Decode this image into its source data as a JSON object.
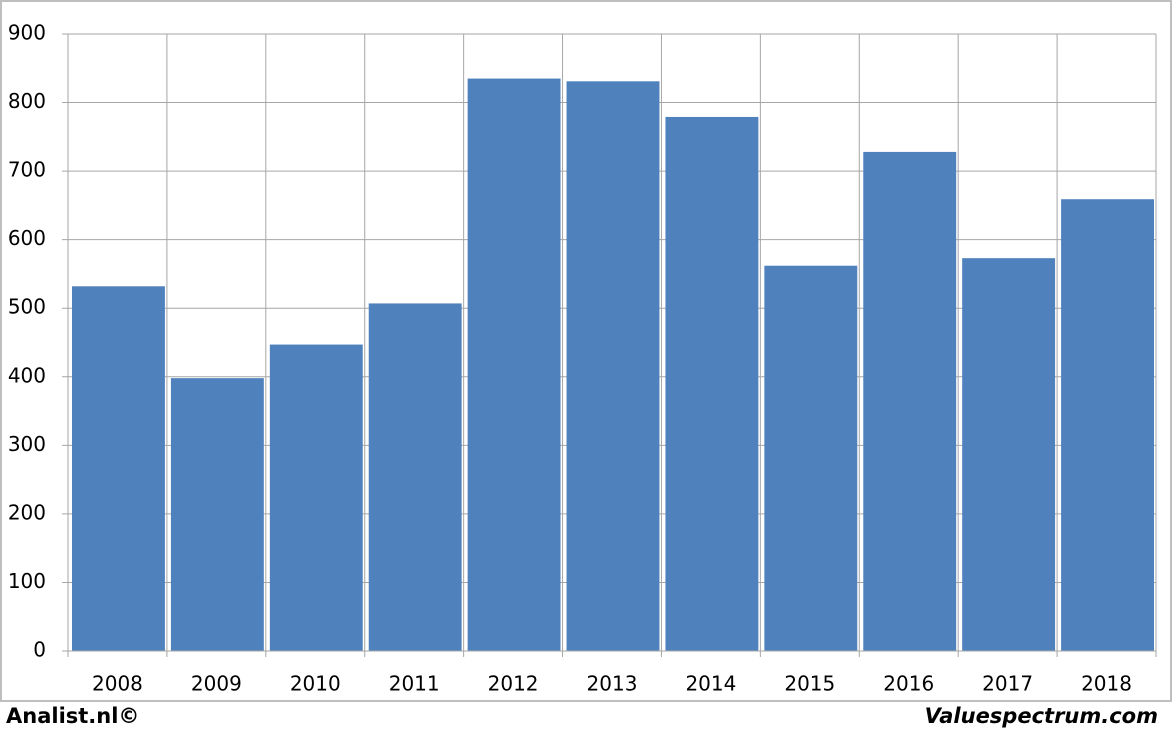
{
  "chart_data": {
    "type": "bar",
    "categories": [
      "2008",
      "2009",
      "2010",
      "2011",
      "2012",
      "2013",
      "2014",
      "2015",
      "2016",
      "2017",
      "2018"
    ],
    "values": [
      532,
      398,
      447,
      507,
      835,
      831,
      779,
      562,
      728,
      573,
      659
    ],
    "color": "#4f81bd",
    "ylim": [
      0,
      900
    ],
    "yticks": [
      0,
      100,
      200,
      300,
      400,
      500,
      600,
      700,
      800,
      900
    ],
    "grid": true,
    "footer_left": "Analist.nl©",
    "footer_right": "Valuespectrum.com"
  }
}
